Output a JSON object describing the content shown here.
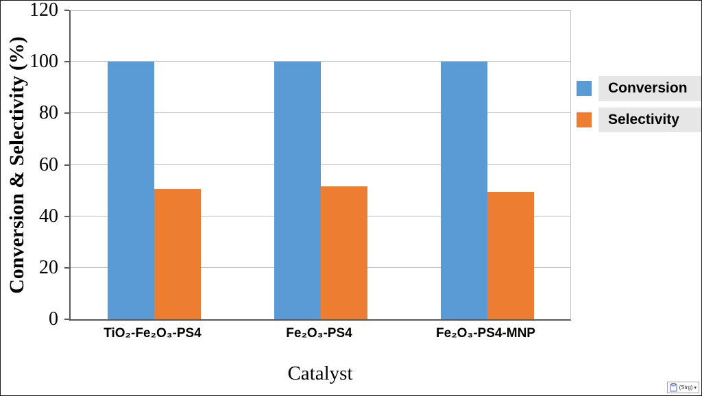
{
  "chart_data": {
    "type": "bar",
    "title": "",
    "categories": [
      "TiO₂-Fe₂O₃-PS4",
      "Fe₂O₃-PS4",
      "Fe₂O₃-PS4-MNP"
    ],
    "series": [
      {
        "name": "Conversion",
        "color": "#5B9BD5",
        "values": [
          100,
          100,
          100
        ]
      },
      {
        "name": "Selectivity",
        "color": "#ED7D31",
        "values": [
          50.5,
          51.5,
          49.5
        ]
      }
    ],
    "xlabel": "Catalyst",
    "ylabel": "Conversion & Selectivity (%)",
    "ylim": [
      0,
      120
    ],
    "yticks": [
      0,
      20,
      40,
      60,
      80,
      100,
      120
    ],
    "grid": true,
    "legend_position": "right"
  },
  "colors": {
    "gridline": "#bfbfbf",
    "axis": "#595959",
    "legend_background": "#e7e6e6"
  },
  "paste_options": {
    "label": "(Strg)",
    "icon": "clipboard-icon"
  }
}
